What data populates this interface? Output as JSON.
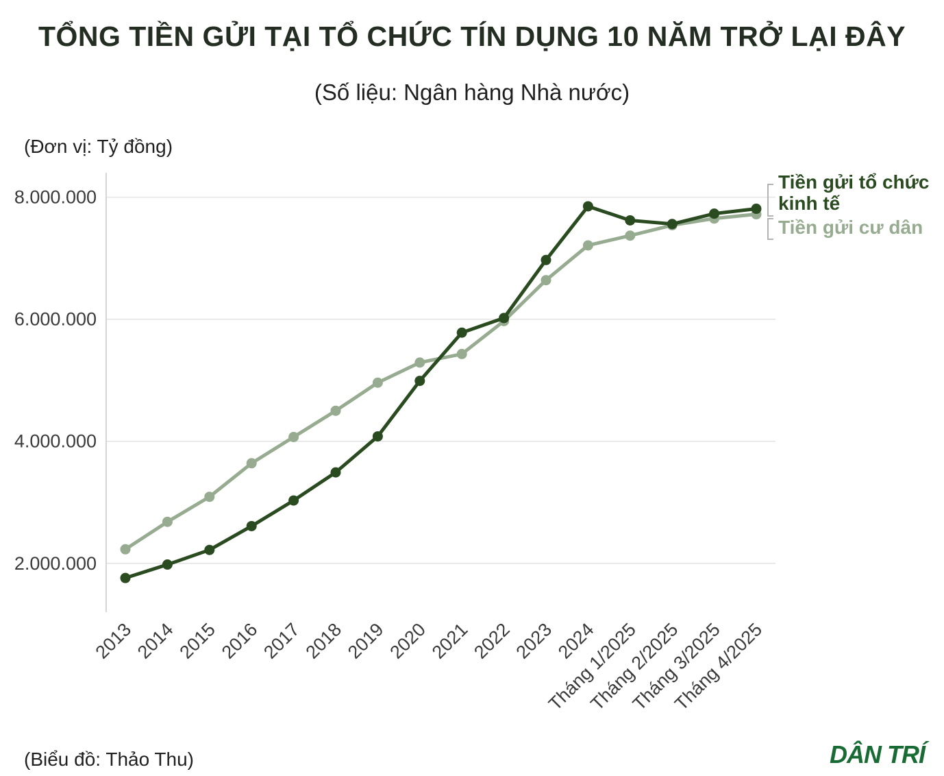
{
  "chart": {
    "title": "TỔNG TIỀN GỬI TẠI TỔ CHỨC TÍN DỤNG 10 NĂM TRỞ LẠI ĐÂY",
    "subtitle": "(Số liệu: Ngân hàng Nhà nước)",
    "unit_label": "(Đơn vị: Tỷ đồng)"
  },
  "legend": {
    "dark_label": "Tiền gửi tổ chức kinh tế",
    "light_label": "Tiền gửi cư dân"
  },
  "footer": {
    "credit": "(Biểu đồ: Thảo Thu)",
    "logo": "DÂN TRÍ"
  },
  "colors": {
    "dark_series": "#2a4a20",
    "light_series": "#96ab8f",
    "grid": "#e3e3e3",
    "axis": "#c9c9c9",
    "tick_text": "#3a3a3a",
    "logo_green": "#176b33"
  },
  "chart_data": {
    "type": "line",
    "title": "TỔNG TIỀN GỬI TẠI TỔ CHỨC TÍN DỤNG 10 NĂM TRỞ LẠI ĐÂY",
    "subtitle": "(Số liệu: Ngân hàng Nhà nước)",
    "ylabel": "Tỷ đồng",
    "xlabel": "",
    "grid": "horizontal",
    "legend_position": "right",
    "categories": [
      "2013",
      "2014",
      "2015",
      "2016",
      "2017",
      "2018",
      "2019",
      "2020",
      "2021",
      "2022",
      "2023",
      "2024",
      "Tháng 1/2025",
      "Tháng 2/2025",
      "Tháng 3/2025",
      "Tháng 4/2025"
    ],
    "series": [
      {
        "name": "Tiền gửi tổ chức kinh tế",
        "color_key": "dark_series",
        "values": [
          1760000,
          1980000,
          2220000,
          2610000,
          3030000,
          3490000,
          4080000,
          4990000,
          5780000,
          6020000,
          6970000,
          7850000,
          7620000,
          7560000,
          7730000,
          7810000
        ]
      },
      {
        "name": "Tiền gửi cư dân",
        "color_key": "light_series",
        "values": [
          2230000,
          2680000,
          3090000,
          3640000,
          4070000,
          4500000,
          4960000,
          5290000,
          5430000,
          5970000,
          6640000,
          7210000,
          7370000,
          7540000,
          7650000,
          7720000
        ]
      }
    ],
    "yticks": [
      {
        "label": "2.000.000",
        "value": 2000000
      },
      {
        "label": "4.000.000",
        "value": 4000000
      },
      {
        "label": "6.000.000",
        "value": 6000000
      },
      {
        "label": "8.000.000",
        "value": 8000000
      }
    ],
    "ylim": [
      1200000,
      8400000
    ]
  }
}
